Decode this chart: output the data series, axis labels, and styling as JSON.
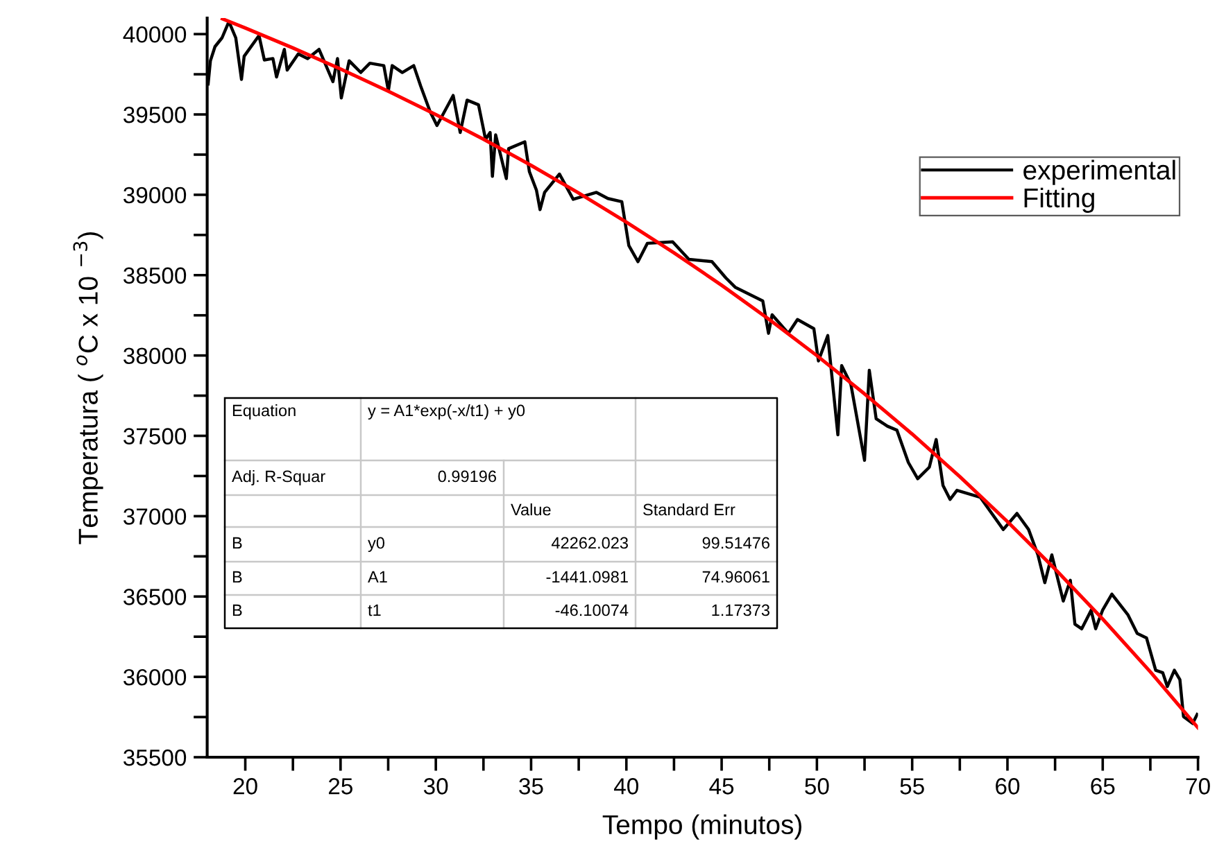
{
  "chart_data": {
    "type": "line",
    "xlabel": "Tempo (minutos)",
    "ylabel": "Temperatura ( $^{o}$C x 10 $^{−3}$)",
    "xlim": [
      18,
      70
    ],
    "ylim": [
      35500,
      40100
    ],
    "xticks": [
      20,
      {
        "value": 22.5,
        "label": null
      },
      25,
      {
        "value": 27.5,
        "label": null
      },
      30,
      {
        "value": 32.5,
        "label": null
      },
      35,
      {
        "value": 37.5,
        "label": null
      },
      40,
      {
        "value": 42.5,
        "label": null
      },
      45,
      {
        "value": 47.5,
        "label": null
      },
      50,
      {
        "value": 52.5,
        "label": null
      },
      55,
      {
        "value": 57.5,
        "label": null
      },
      60,
      {
        "value": 62.5,
        "label": null
      },
      65,
      {
        "value": 67.5,
        "label": null
      },
      70
    ],
    "yticks": [
      35500,
      {
        "value": 35750,
        "label": null
      },
      36000,
      {
        "value": 36250,
        "label": null
      },
      36500,
      {
        "value": 36750,
        "label": null
      },
      37000,
      {
        "value": 37250,
        "label": null
      },
      37500,
      {
        "value": 37750,
        "label": null
      },
      38000,
      {
        "value": 38250,
        "label": null
      },
      38500,
      {
        "value": 38750,
        "label": null
      },
      39000,
      {
        "value": 39250,
        "label": null
      },
      39500,
      {
        "value": 39750,
        "label": null
      },
      40000
    ],
    "grid": false,
    "legend": "top right",
    "marker": "none",
    "line_style": "solid",
    "series": [
      {
        "name": "experimental",
        "color": "#000000",
        "x": [
          18.05,
          18.17,
          18.41,
          18.78,
          19.14,
          19.5,
          19.8,
          19.94,
          20.72,
          21.0,
          21.45,
          21.64,
          22.05,
          22.2,
          22.78,
          23.27,
          23.87,
          24.6,
          24.84,
          25.04,
          25.45,
          26.06,
          26.54,
          27.27,
          27.51,
          27.71,
          28.24,
          28.84,
          29.21,
          29.7,
          30.06,
          30.91,
          31.28,
          31.64,
          32.24,
          32.61,
          32.85,
          32.97,
          33.14,
          33.7,
          33.82,
          34.67,
          34.91,
          35.28,
          35.47,
          35.71,
          36.49,
          37.21,
          38.43,
          39.03,
          39.76,
          40.13,
          40.61,
          41.1,
          42.43,
          43.28,
          44.49,
          45.22,
          45.71,
          47.16,
          47.46,
          47.65,
          48.5,
          48.98,
          49.84,
          50.08,
          50.57,
          51.1,
          51.3,
          51.78,
          52.5,
          52.75,
          53.11,
          53.7,
          54.2,
          54.8,
          55.29,
          55.9,
          56.26,
          56.62,
          56.99,
          57.35,
          58.57,
          59.78,
          60.5,
          61.11,
          61.6,
          61.96,
          62.33,
          62.93,
          63.3,
          63.54,
          63.9,
          64.39,
          64.63,
          64.99,
          65.48,
          66.33,
          66.81,
          67.3,
          67.78,
          68.15,
          68.39,
          68.76,
          69.05,
          69.24,
          69.72,
          69.96
        ],
        "values": [
          39690,
          39834,
          39922,
          39977,
          40078,
          39977,
          39718,
          39862,
          39991,
          39839,
          39848,
          39733,
          39905,
          39776,
          39877,
          39848,
          39905,
          39704,
          39848,
          39603,
          39834,
          39761,
          39819,
          39804,
          39647,
          39804,
          39761,
          39804,
          39675,
          39517,
          39431,
          39618,
          39388,
          39589,
          39560,
          39345,
          39388,
          39115,
          39373,
          39101,
          39287,
          39330,
          39144,
          39029,
          38908,
          39015,
          39129,
          38972,
          39015,
          38977,
          38957,
          38684,
          38584,
          38698,
          38707,
          38598,
          38584,
          38483,
          38425,
          38339,
          38138,
          38253,
          38138,
          38224,
          38167,
          37966,
          38124,
          37506,
          37937,
          37822,
          37348,
          37908,
          37606,
          37560,
          37535,
          37334,
          37233,
          37305,
          37477,
          37190,
          37104,
          37161,
          37118,
          36917,
          37017,
          36917,
          36759,
          36586,
          36759,
          36472,
          36601,
          36328,
          36299,
          36414,
          36299,
          36414,
          36515,
          36385,
          36270,
          36242,
          36041,
          36026,
          35940,
          36041,
          35983,
          35753,
          35710,
          35767
        ]
      },
      {
        "name": "Fitting",
        "color": "#ff0000",
        "x": [
          18.8,
          20,
          22.5,
          25,
          27.5,
          30,
          32.5,
          35,
          37.5,
          40,
          42.5,
          45,
          47.5,
          50,
          52.5,
          55,
          57.5,
          60,
          62.5,
          65,
          67.5,
          70
        ],
        "values": [
          40095,
          40038,
          39914,
          39783,
          39645,
          39499,
          39346,
          39183,
          39011,
          38830,
          38639,
          38437,
          38224,
          37999,
          37761,
          37511,
          37246,
          36966,
          36671,
          36360,
          36031,
          35683
        ]
      }
    ],
    "annotations": [
      "Equation",
      "y = A1*exp(-x/t1) + y0",
      "Adj. R-Squar",
      "0.99196",
      "Value",
      "Standard Err",
      "B",
      "y0",
      "42262.023",
      "99.51476",
      "B",
      "A1",
      "-1441.0981",
      "74.96061",
      "B",
      "t1",
      "-46.10074",
      "1.17373"
    ]
  }
}
